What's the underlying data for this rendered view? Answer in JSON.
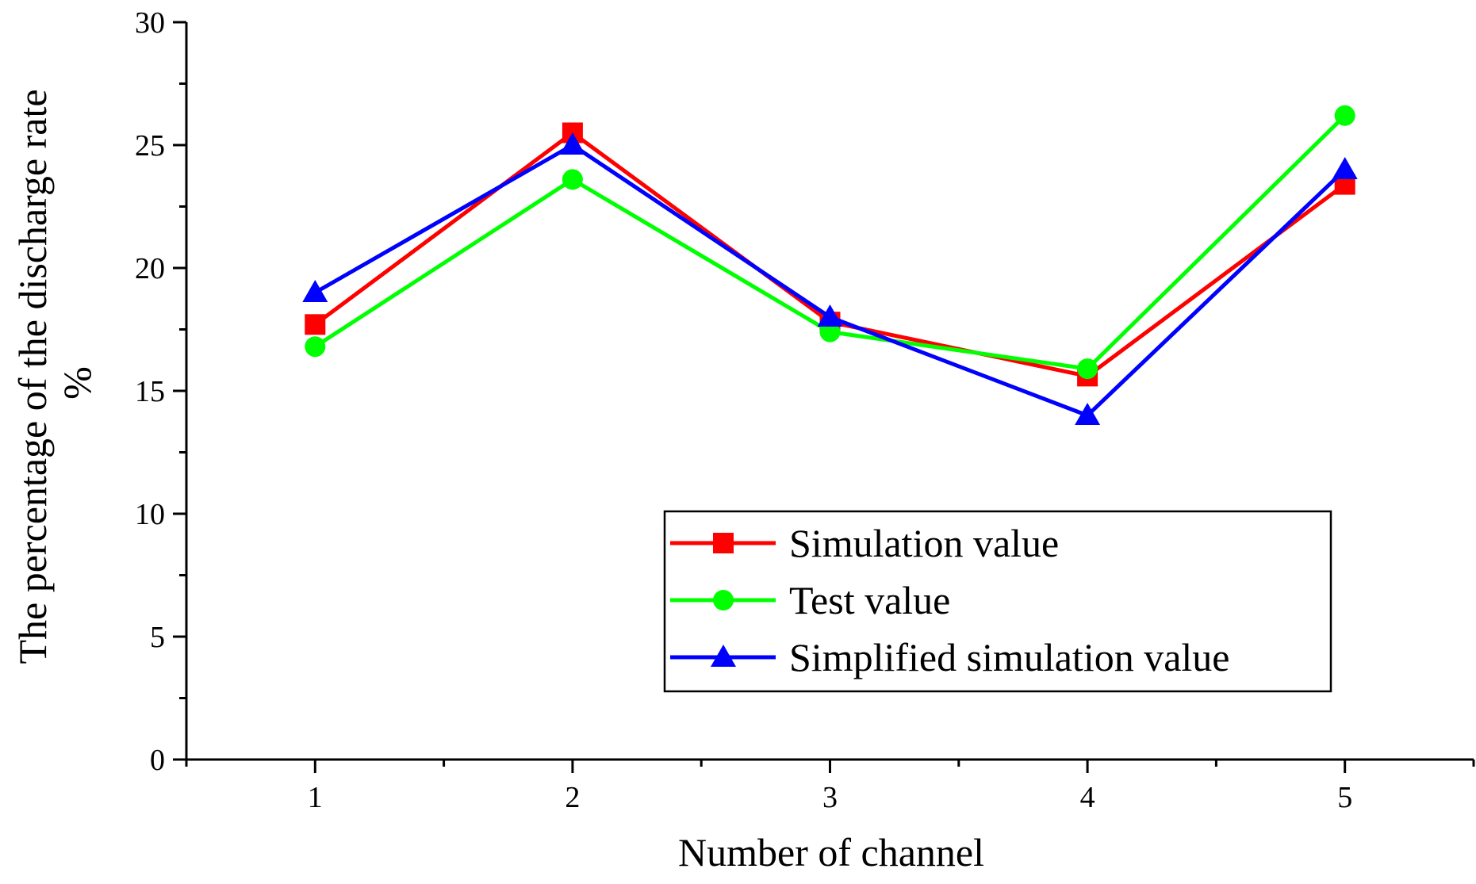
{
  "chart_data": {
    "type": "line",
    "title": "",
    "xlabel": "Number of channel",
    "ylabel": "The percentage of the discharge rate",
    "ylabel_unit": "%",
    "x": [
      1,
      2,
      3,
      4,
      5
    ],
    "x_ticks": [
      "1",
      "2",
      "3",
      "4",
      "5"
    ],
    "xlim": [
      0.5,
      5.5
    ],
    "ylim": [
      0,
      30
    ],
    "y_ticks": [
      "0",
      "5",
      "10",
      "15",
      "20",
      "25",
      "30"
    ],
    "grid": false,
    "legend_position": "lower-right",
    "series": [
      {
        "name": "Simulation value",
        "color": "#ff0000",
        "marker": "square",
        "values": [
          17.7,
          25.5,
          17.8,
          15.6,
          23.4
        ]
      },
      {
        "name": "Test value",
        "color": "#00ff00",
        "marker": "circle",
        "values": [
          16.8,
          23.6,
          17.4,
          15.9,
          26.2
        ]
      },
      {
        "name": "Simplified simulation value",
        "color": "#0000ff",
        "marker": "triangle",
        "values": [
          19.0,
          25.0,
          18.0,
          14.0,
          24.0
        ]
      }
    ]
  }
}
